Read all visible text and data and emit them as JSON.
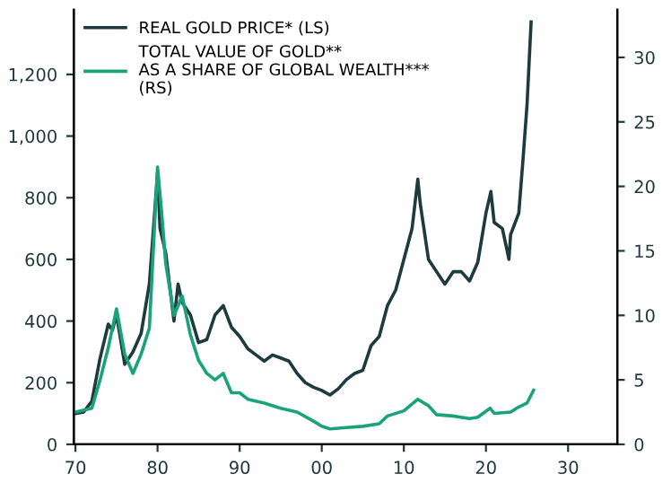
{
  "chart_data": {
    "type": "line",
    "xlim": [
      1969.8,
      2036
    ],
    "xticks": [
      {
        "value": 1970,
        "label": "70"
      },
      {
        "value": 1980,
        "label": "80"
      },
      {
        "value": 1990,
        "label": "90"
      },
      {
        "value": 2000,
        "label": "00"
      },
      {
        "value": 2010,
        "label": "10"
      },
      {
        "value": 2020,
        "label": "20"
      },
      {
        "value": 2030,
        "label": "30"
      }
    ],
    "ylim": [
      0,
      1410
    ],
    "yticks": [
      0,
      200,
      400,
      600,
      800,
      {
        "value": 1000,
        "label": "1,000"
      },
      {
        "value": 1200,
        "label": "1,200"
      }
    ],
    "y2lim": [
      0,
      33.7
    ],
    "y2ticks": [
      0,
      5,
      10,
      15,
      20,
      25,
      30
    ],
    "legend": "top left",
    "grid": false,
    "series": [
      {
        "name": "REAL GOLD PRICE* (LS)",
        "color": "#1f3a3d",
        "x": [
          1970,
          1971,
          1972,
          1973,
          1974,
          1974.5,
          1975,
          1976,
          1977,
          1978,
          1979,
          1980,
          1980.3,
          1981,
          1982,
          1982.5,
          1983,
          1984,
          1985,
          1986,
          1987,
          1988,
          1989,
          1990,
          1991,
          1992,
          1993,
          1994,
          1995,
          1996,
          1997,
          1998,
          1999,
          2000,
          2001,
          2002,
          2003,
          2004,
          2005,
          2006,
          2007,
          2008,
          2009,
          2010,
          2011,
          2011.7,
          2012,
          2013,
          2014,
          2015,
          2016,
          2017,
          2018,
          2019,
          2020,
          2020.6,
          2021,
          2022,
          2022.8,
          2023,
          2024,
          2024.5,
          2025,
          2025.5
        ],
        "values": [
          100,
          105,
          140,
          280,
          390,
          370,
          420,
          260,
          300,
          360,
          520,
          880,
          700,
          620,
          400,
          520,
          460,
          420,
          330,
          340,
          420,
          450,
          380,
          350,
          310,
          290,
          270,
          290,
          280,
          270,
          230,
          200,
          185,
          175,
          160,
          180,
          210,
          230,
          240,
          320,
          350,
          450,
          500,
          600,
          700,
          860,
          780,
          600,
          560,
          520,
          560,
          560,
          530,
          590,
          750,
          820,
          720,
          700,
          600,
          680,
          750,
          920,
          1100,
          1370
        ]
      },
      {
        "name": "TOTAL VALUE OF GOLD**\nAS A SHARE OF GLOBAL WEALTH***\n(RS)",
        "color": "#1aa37a",
        "axis": "y2",
        "x": [
          1970,
          1972,
          1973,
          1974,
          1975,
          1976,
          1977,
          1978,
          1979,
          1980,
          1980.5,
          1981,
          1982,
          1983,
          1984,
          1985,
          1986,
          1987,
          1988,
          1989,
          1990,
          1991,
          1993,
          1995,
          1997,
          1999,
          2000,
          2001,
          2003,
          2005,
          2007,
          2008,
          2010,
          2011.7,
          2013,
          2014,
          2016,
          2018,
          2019,
          2020.5,
          2021,
          2023,
          2024,
          2025,
          2025.8
        ],
        "values": [
          2.5,
          2.8,
          5,
          7.5,
          10.5,
          7,
          5.5,
          7,
          9,
          21.5,
          18,
          14,
          10,
          11.5,
          8.5,
          6.5,
          5.5,
          5,
          5.5,
          4,
          4,
          3.5,
          3.2,
          2.8,
          2.5,
          1.8,
          1.4,
          1.2,
          1.3,
          1.4,
          1.6,
          2.2,
          2.6,
          3.5,
          3.0,
          2.3,
          2.2,
          2.0,
          2.1,
          2.8,
          2.4,
          2.5,
          2.9,
          3.2,
          4.2
        ]
      }
    ]
  }
}
